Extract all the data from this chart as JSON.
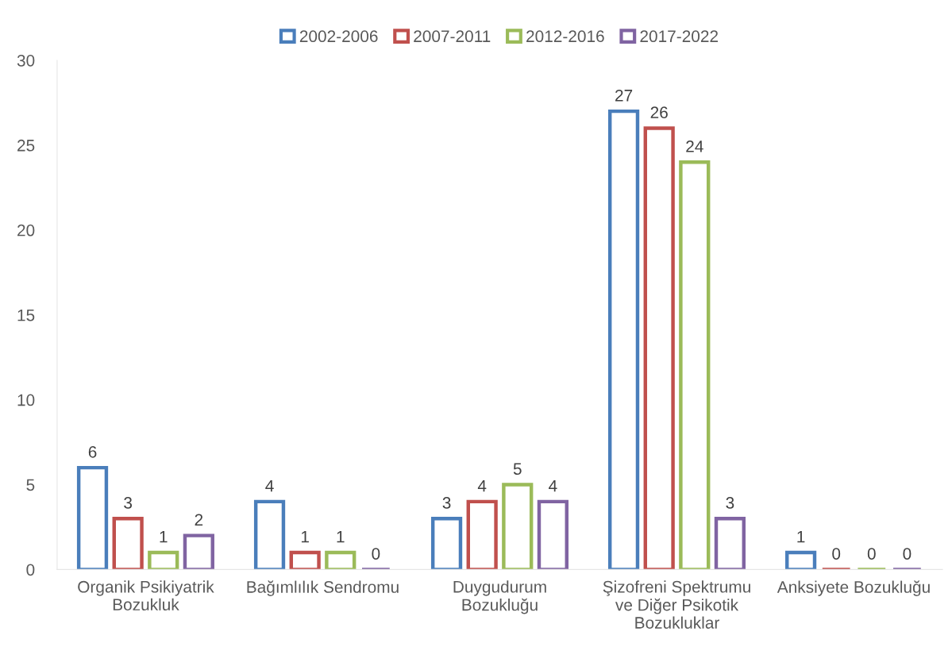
{
  "chart_data": {
    "type": "bar",
    "categories": [
      "Organik Psikiyatrik\nBozukluk",
      "Bağımlılık Sendromu",
      "Duygudurum\nBozukluğu",
      "Şizofreni Spektrumu\nve Diğer Psikotik\nBozukluklar",
      "Anksiyete Bozukluğu"
    ],
    "series": [
      {
        "name": "2002-2006",
        "color": "#4a7ebb",
        "values": [
          6,
          4,
          3,
          27,
          1
        ]
      },
      {
        "name": "2007-2011",
        "color": "#c0504d",
        "values": [
          3,
          1,
          4,
          26,
          0
        ]
      },
      {
        "name": "2012-2016",
        "color": "#9bbb59",
        "values": [
          1,
          1,
          5,
          24,
          0
        ]
      },
      {
        "name": "2017-2022",
        "color": "#8064a2",
        "values": [
          2,
          0,
          4,
          3,
          0
        ]
      }
    ],
    "ylim": [
      0,
      30
    ],
    "yticks": [
      0,
      5,
      10,
      15,
      20,
      25,
      30
    ],
    "data_labels": true,
    "legend": "top",
    "grid": false
  }
}
